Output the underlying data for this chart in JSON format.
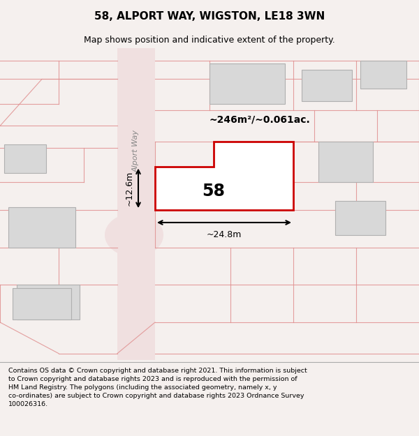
{
  "title_line1": "58, ALPORT WAY, WIGSTON, LE18 3WN",
  "title_line2": "Map shows position and indicative extent of the property.",
  "footer_text": "Contains OS data © Crown copyright and database right 2021. This information is subject\nto Crown copyright and database rights 2023 and is reproduced with the permission of\nHM Land Registry. The polygons (including the associated geometry, namely x, y\nco-ordinates) are subject to Crown copyright and database rights 2023 Ordnance Survey\n100026316.",
  "bg_color": "#f5f0ee",
  "map_bg": "#ffffff",
  "highlight_color": "#cc0000",
  "building_fill": "#d8d8d8",
  "building_edge": "#aaaaaa",
  "area_text": "~246m²/~0.061ac.",
  "width_text": "~24.8m",
  "height_text": "~12.6m",
  "road_label": "Alport Way",
  "number_label": "58"
}
